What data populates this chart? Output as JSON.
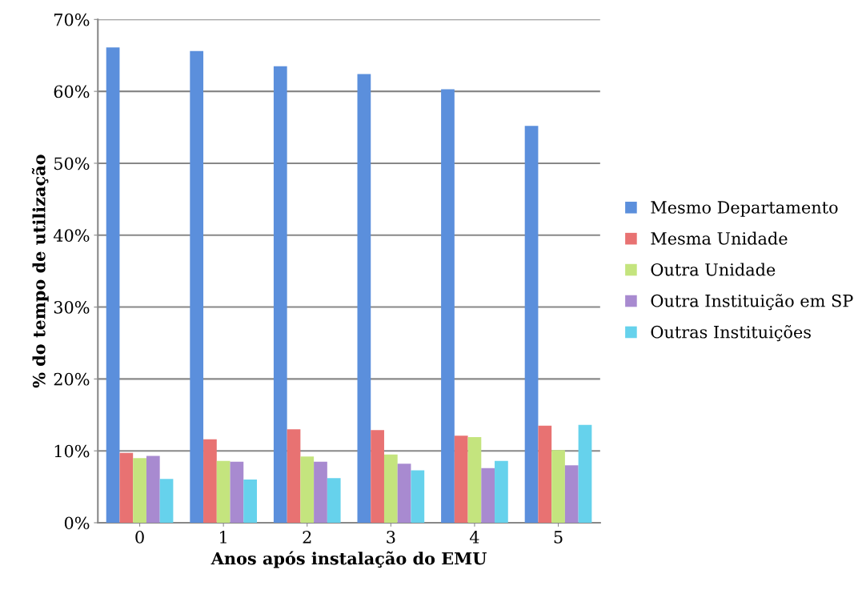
{
  "chart_data": {
    "type": "bar",
    "xlabel": "Anos após instalação do EMU",
    "ylabel": "% do tempo de utilização",
    "categories": [
      "0",
      "1",
      "2",
      "3",
      "4",
      "5"
    ],
    "series": [
      {
        "name": "Mesmo Departamento",
        "color": "#5b8fdc",
        "values": [
          66.1,
          65.6,
          63.5,
          62.4,
          60.3,
          55.2
        ]
      },
      {
        "name": "Mesma Unidade",
        "color": "#e87272",
        "values": [
          9.7,
          11.6,
          13.0,
          12.9,
          12.1,
          13.5
        ]
      },
      {
        "name": "Outra Unidade",
        "color": "#c4e47e",
        "values": [
          9.0,
          8.6,
          9.2,
          9.5,
          11.9,
          10.1
        ]
      },
      {
        "name": "Outra Instituição em SP",
        "color": "#a88ad0",
        "values": [
          9.3,
          8.5,
          8.5,
          8.2,
          7.6,
          8.0
        ]
      },
      {
        "name": "Outras Instituições",
        "color": "#66d2ec",
        "values": [
          6.1,
          6.0,
          6.2,
          7.3,
          8.6,
          13.6
        ]
      }
    ],
    "ylim": [
      0,
      70
    ],
    "yticks": [
      {
        "value": 0,
        "label": "0%"
      },
      {
        "value": 10,
        "label": "10%"
      },
      {
        "value": 20,
        "label": "20%"
      },
      {
        "value": 30,
        "label": "30%"
      },
      {
        "value": 40,
        "label": "40%"
      },
      {
        "value": 50,
        "label": "50%"
      },
      {
        "value": 60,
        "label": "60%"
      },
      {
        "value": 70,
        "label": "70%"
      }
    ],
    "grid": "y",
    "legend": "right"
  }
}
